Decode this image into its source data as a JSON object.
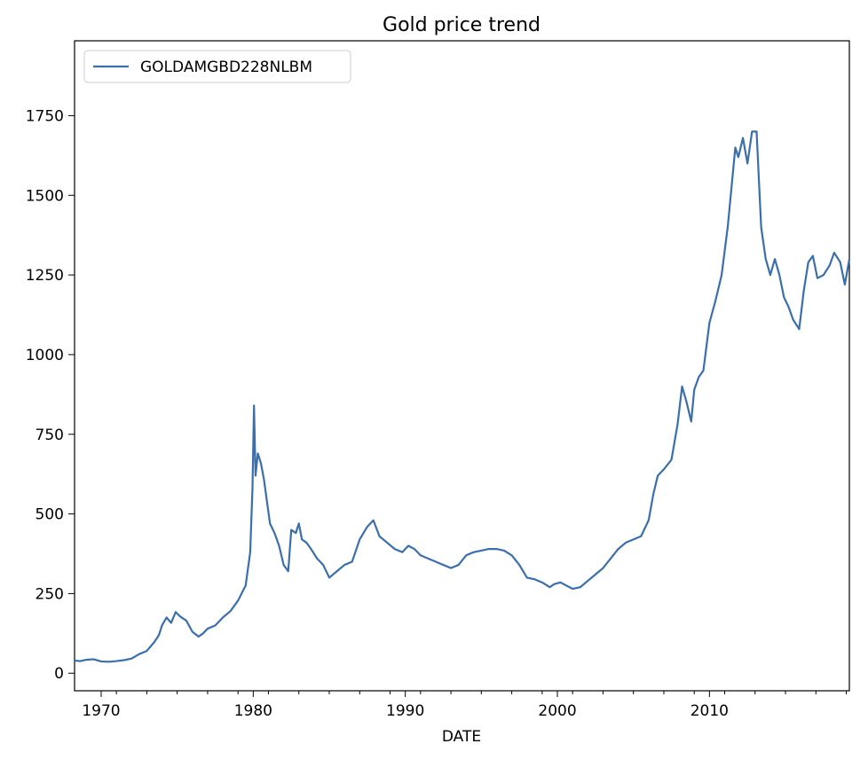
{
  "chart_data": {
    "type": "line",
    "title": "Gold price trend",
    "xlabel": "DATE",
    "ylabel": "",
    "legend": {
      "entries": [
        "GOLDAMGBD228NLBM"
      ],
      "placement": "top-left"
    },
    "grid": false,
    "xlim": [
      1968.25,
      2019.2
    ],
    "ylim": [
      -55,
      1985
    ],
    "x_ticks": [
      1970,
      1980,
      1990,
      2000,
      2010
    ],
    "x_tick_labels": [
      "1970",
      "1980",
      "1990",
      "2000",
      "2010"
    ],
    "y_ticks": [
      0,
      250,
      500,
      750,
      1000,
      1250,
      1500,
      1750
    ],
    "y_tick_labels": [
      "0",
      "250",
      "500",
      "750",
      "1000",
      "1250",
      "1500",
      "1750"
    ],
    "color": "#3a6fad",
    "series": [
      {
        "name": "GOLDAMGBD228NLBM",
        "x": [
          1968.25,
          1968.6,
          1969.0,
          1969.5,
          1970.0,
          1970.5,
          1971.0,
          1971.5,
          1972.0,
          1972.5,
          1973.0,
          1973.5,
          1973.8,
          1974.0,
          1974.3,
          1974.6,
          1974.9,
          1975.2,
          1975.6,
          1976.0,
          1976.4,
          1976.7,
          1977.0,
          1977.5,
          1978.0,
          1978.5,
          1979.0,
          1979.5,
          1979.8,
          1979.95,
          1980.05,
          1980.15,
          1980.3,
          1980.5,
          1980.7,
          1980.9,
          1981.1,
          1981.4,
          1981.7,
          1982.0,
          1982.3,
          1982.5,
          1982.8,
          1983.0,
          1983.2,
          1983.5,
          1983.8,
          1984.2,
          1984.6,
          1985.0,
          1985.5,
          1986.0,
          1986.5,
          1987.0,
          1987.5,
          1987.9,
          1988.3,
          1988.8,
          1989.3,
          1989.8,
          1990.2,
          1990.6,
          1991.0,
          1991.5,
          1992.0,
          1992.5,
          1993.0,
          1993.5,
          1994.0,
          1994.5,
          1995.0,
          1995.5,
          1996.0,
          1996.5,
          1997.0,
          1997.5,
          1998.0,
          1998.5,
          1999.0,
          1999.5,
          1999.8,
          2000.2,
          2000.6,
          2001.0,
          2001.5,
          2002.0,
          2002.5,
          2003.0,
          2003.5,
          2004.0,
          2004.5,
          2005.0,
          2005.5,
          2006.0,
          2006.3,
          2006.6,
          2007.0,
          2007.5,
          2007.9,
          2008.2,
          2008.5,
          2008.8,
          2009.0,
          2009.3,
          2009.6,
          2010.0,
          2010.4,
          2010.8,
          2011.2,
          2011.5,
          2011.7,
          2011.9,
          2012.2,
          2012.5,
          2012.8,
          2013.1,
          2013.4,
          2013.7,
          2014.0,
          2014.3,
          2014.6,
          2014.9,
          2015.2,
          2015.5,
          2015.9,
          2016.2,
          2016.5,
          2016.8,
          2017.1,
          2017.5,
          2017.9,
          2018.2,
          2018.6,
          2018.9,
          2019.2
        ],
        "y": [
          40,
          38,
          42,
          44,
          37,
          36,
          38,
          41,
          46,
          60,
          70,
          98,
          120,
          150,
          175,
          158,
          192,
          178,
          165,
          130,
          115,
          125,
          140,
          150,
          175,
          195,
          228,
          275,
          380,
          580,
          840,
          620,
          690,
          660,
          610,
          540,
          470,
          440,
          400,
          340,
          320,
          450,
          440,
          470,
          420,
          410,
          390,
          360,
          340,
          300,
          320,
          340,
          350,
          420,
          460,
          480,
          430,
          410,
          390,
          380,
          400,
          390,
          370,
          360,
          350,
          340,
          330,
          340,
          370,
          380,
          385,
          390,
          390,
          385,
          370,
          340,
          300,
          295,
          285,
          270,
          280,
          285,
          275,
          265,
          270,
          290,
          310,
          330,
          360,
          390,
          410,
          420,
          430,
          480,
          560,
          620,
          640,
          670,
          780,
          900,
          850,
          790,
          890,
          930,
          950,
          1100,
          1170,
          1250,
          1400,
          1550,
          1650,
          1620,
          1680,
          1600,
          1700,
          1700,
          1400,
          1300,
          1250,
          1300,
          1250,
          1180,
          1150,
          1110,
          1080,
          1200,
          1290,
          1310,
          1240,
          1250,
          1280,
          1320,
          1290,
          1220,
          1300
        ]
      }
    ]
  }
}
